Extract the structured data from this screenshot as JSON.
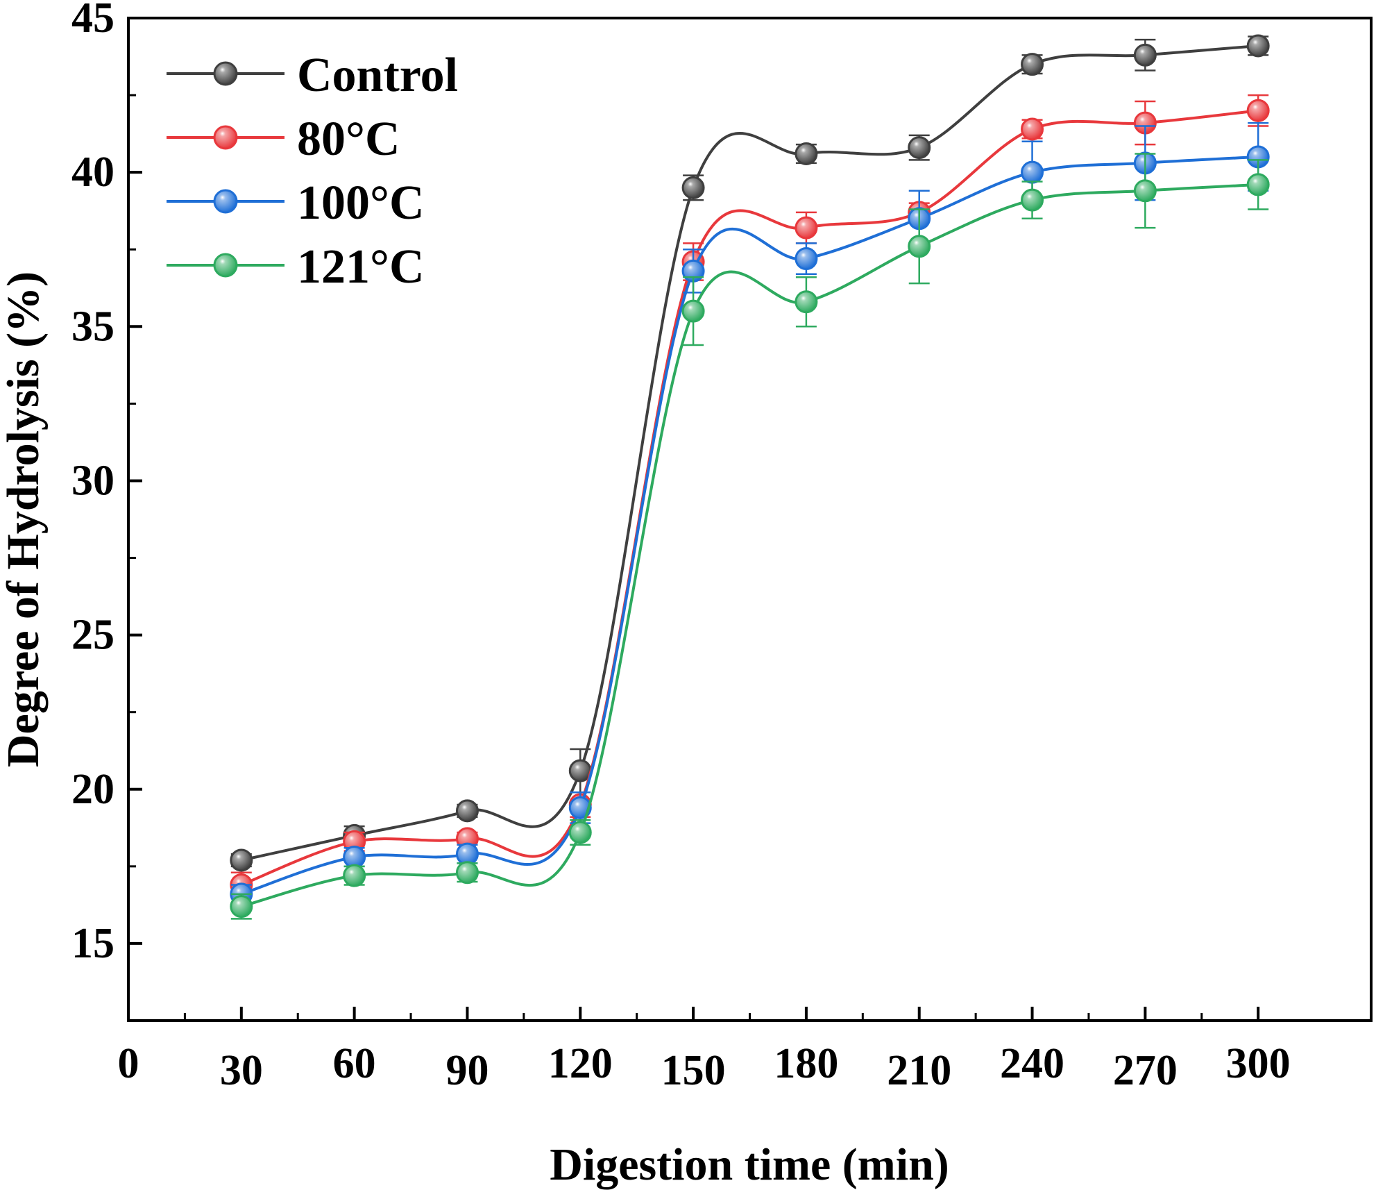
{
  "chart_data": {
    "type": "line",
    "title": "",
    "xlabel": "Digestion time (min)",
    "ylabel": "Degree of Hydrolysis (%)",
    "xlim": [
      0,
      330
    ],
    "ylim": [
      12.5,
      45
    ],
    "x_ticks": [
      0,
      30,
      60,
      90,
      120,
      150,
      180,
      210,
      240,
      270,
      300
    ],
    "x_tick_labels": [
      "0",
      "30",
      "60",
      "90",
      "120",
      "150",
      "180",
      "210",
      "240",
      "270",
      "300"
    ],
    "y_ticks": [
      15,
      20,
      25,
      30,
      35,
      40,
      45
    ],
    "y_tick_labels": [
      "15",
      "20",
      "25",
      "30",
      "35",
      "40",
      "45"
    ],
    "x": [
      30,
      60,
      90,
      120,
      150,
      180,
      210,
      240,
      270,
      300
    ],
    "legend_position": "top-left",
    "series": [
      {
        "name": "Control",
        "color": "#3f3f3f",
        "values": [
          17.7,
          18.5,
          19.3,
          20.6,
          39.5,
          40.6,
          40.8,
          43.5,
          43.8,
          44.1
        ],
        "errors": [
          0.2,
          0.3,
          0.2,
          0.7,
          0.4,
          0.3,
          0.4,
          0.3,
          0.5,
          0.3
        ]
      },
      {
        "name": "80°C",
        "color": "#e8383c",
        "values": [
          16.9,
          18.3,
          18.4,
          19.5,
          37.1,
          38.2,
          38.7,
          41.4,
          41.6,
          42.0
        ],
        "errors": [
          0.4,
          0.3,
          0.2,
          0.4,
          0.6,
          0.5,
          0.3,
          0.3,
          0.7,
          0.5
        ]
      },
      {
        "name": "100°C",
        "color": "#1f6fd6",
        "values": [
          16.6,
          17.8,
          17.9,
          19.4,
          36.8,
          37.2,
          38.5,
          40.0,
          40.3,
          40.5
        ],
        "errors": [
          0.3,
          0.3,
          0.3,
          0.5,
          0.7,
          0.5,
          0.9,
          1.0,
          1.2,
          1.1
        ]
      },
      {
        "name": "121°C",
        "color": "#2eaa5f",
        "values": [
          16.2,
          17.2,
          17.3,
          18.6,
          35.5,
          35.8,
          37.6,
          39.1,
          39.4,
          39.6
        ],
        "errors": [
          0.4,
          0.3,
          0.3,
          0.4,
          1.1,
          0.8,
          1.2,
          0.6,
          1.2,
          0.8
        ]
      }
    ]
  }
}
